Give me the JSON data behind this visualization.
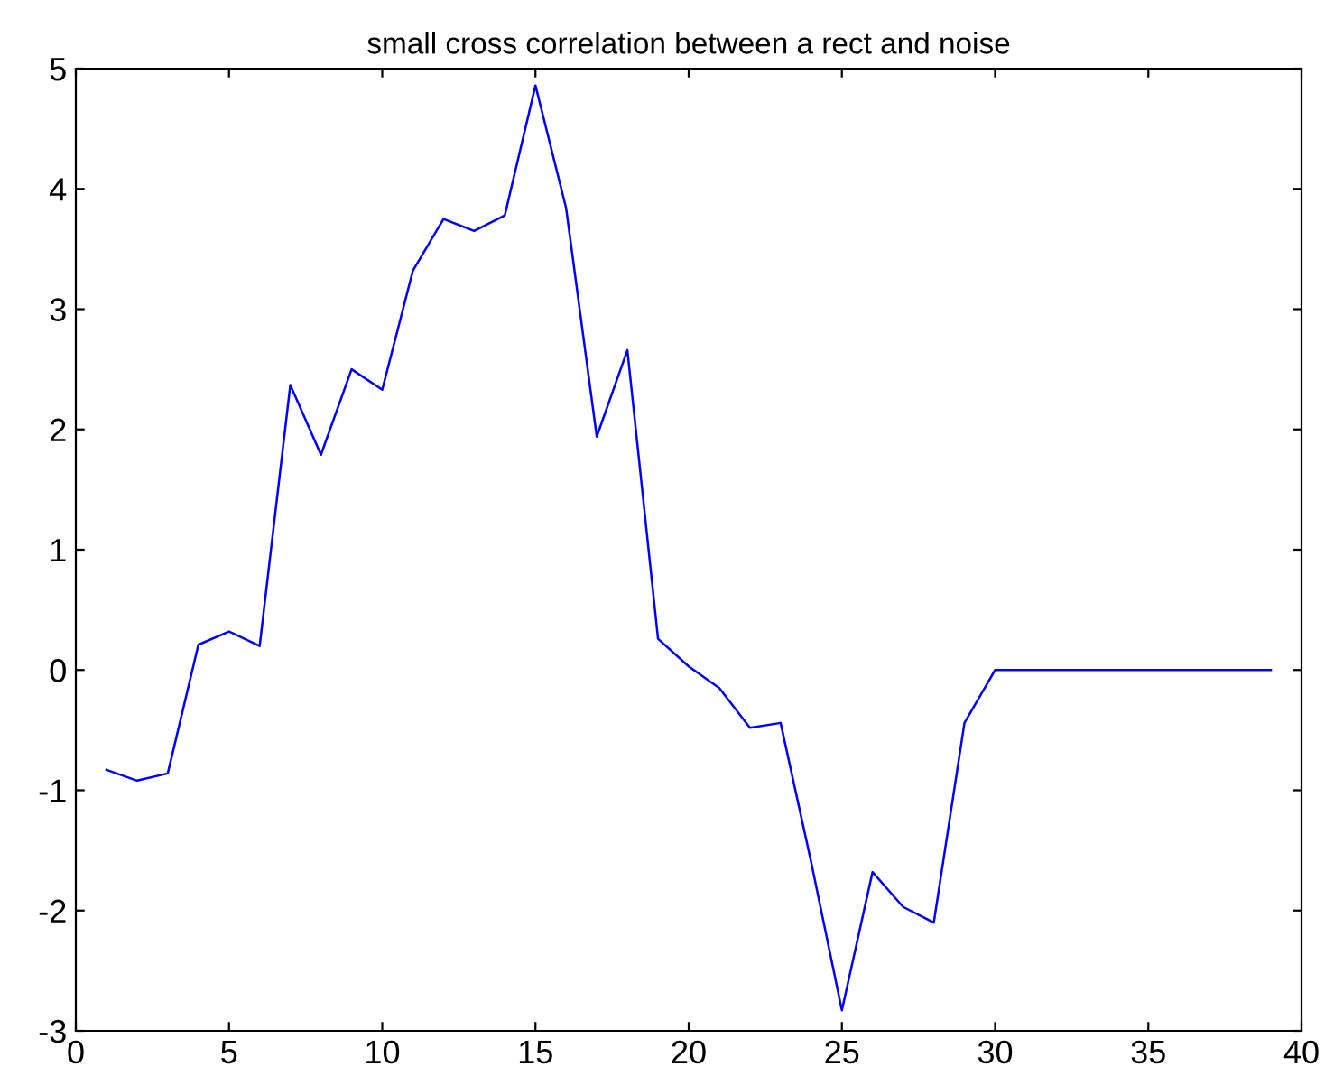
{
  "chart_data": {
    "type": "line",
    "title": "small cross correlation between a rect and noise",
    "x": [
      1,
      2,
      3,
      4,
      5,
      6,
      7,
      8,
      9,
      10,
      11,
      12,
      13,
      14,
      15,
      16,
      17,
      18,
      19,
      20,
      21,
      22,
      23,
      24,
      25,
      26,
      27,
      28,
      29,
      30,
      31,
      32,
      33,
      34,
      35,
      36,
      37,
      38,
      39
    ],
    "series": [
      {
        "color": "#0000ff",
        "values": [
          -0.83,
          -0.92,
          -0.86,
          0.21,
          0.32,
          0.2,
          2.37,
          1.79,
          2.5,
          2.33,
          3.32,
          3.75,
          3.65,
          3.78,
          4.86,
          3.84,
          1.94,
          2.66,
          0.26,
          0.03,
          -0.15,
          -0.48,
          -0.44,
          -1.6,
          -2.83,
          -1.68,
          -1.97,
          -2.1,
          -0.44,
          0,
          0,
          0,
          0,
          0,
          0,
          0,
          0,
          0,
          0
        ]
      }
    ],
    "xlim": [
      0,
      40
    ],
    "xticks": [
      0,
      5,
      10,
      15,
      20,
      25,
      30,
      35,
      40
    ],
    "ylim": [
      -3,
      5
    ],
    "yticks": [
      -3,
      -2,
      -1,
      0,
      1,
      2,
      3,
      4,
      5
    ],
    "grid": false,
    "legend": false,
    "marker": "none",
    "line_style": "solid"
  }
}
